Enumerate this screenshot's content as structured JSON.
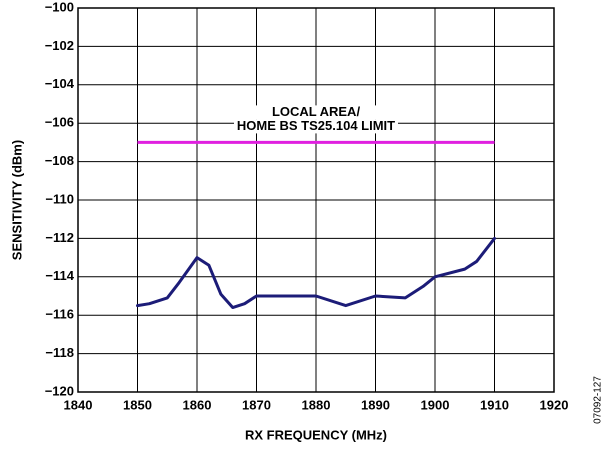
{
  "chart_data": {
    "type": "line",
    "xlabel": "RX FREQUENCY (MHz)",
    "ylabel": "SENSITIVITY (dBm)",
    "note": "07092-127",
    "xlim": [
      1840,
      1920
    ],
    "xticks": [
      1840,
      1850,
      1860,
      1870,
      1880,
      1890,
      1900,
      1910,
      1920
    ],
    "ylim": [
      -120,
      -100
    ],
    "yticks": [
      {
        "value": -120,
        "label": "−120"
      },
      {
        "value": -118,
        "label": "−118"
      },
      {
        "value": -116,
        "label": "−116"
      },
      {
        "value": -114,
        "label": "−114"
      },
      {
        "value": -112,
        "label": "−112"
      },
      {
        "value": -110,
        "label": "−110"
      },
      {
        "value": -108,
        "label": "−108"
      },
      {
        "value": -106,
        "label": "−106"
      },
      {
        "value": -104,
        "label": "−104"
      },
      {
        "value": -102,
        "label": "−102"
      },
      {
        "value": -100,
        "label": "−100"
      }
    ],
    "grid": true,
    "series": [
      {
        "color": "#1c1c78",
        "x": [
          1850,
          1852,
          1855,
          1857,
          1860,
          1862,
          1864,
          1866,
          1868,
          1870,
          1875,
          1880,
          1885,
          1890,
          1895,
          1898,
          1900,
          1905,
          1907,
          1910
        ],
        "values": [
          -115.5,
          -115.4,
          -115.1,
          -114.3,
          -113.0,
          -113.4,
          -114.9,
          -115.6,
          -115.4,
          -115.0,
          -115.0,
          -115.0,
          -115.5,
          -115.0,
          -115.1,
          -114.5,
          -114.0,
          -113.6,
          -113.2,
          -112.0
        ]
      }
    ],
    "limit": {
      "value": -107,
      "x": [
        1850,
        1910
      ],
      "color": "#e020e0",
      "label": [
        "LOCAL AREA/",
        "HOME BS TS25.104 LIMIT"
      ]
    }
  }
}
